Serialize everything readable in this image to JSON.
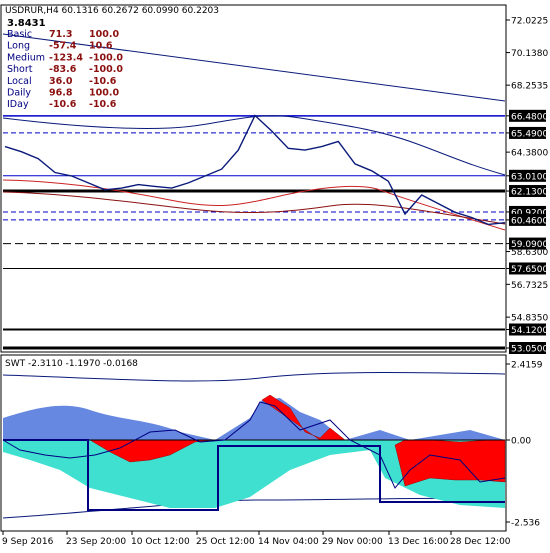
{
  "header": {
    "symbol_line": "USDRUR,H4  60.1316 60.2672 60.0990 60.2203",
    "value": "3.8431"
  },
  "table": [
    {
      "name": "Basic",
      "a": "71.3",
      "b": "100.0"
    },
    {
      "name": "Long",
      "a": "-57.4",
      "b": "10.6"
    },
    {
      "name": "Medium",
      "a": "-123.4",
      "b": "-100.0"
    },
    {
      "name": "Short",
      "a": "-83.6",
      "b": "-100.0"
    },
    {
      "name": "Local",
      "a": "36.0",
      "b": "-10.6"
    },
    {
      "name": "Daily",
      "a": "96.8",
      "b": "100.0"
    },
    {
      "name": "IDay",
      "a": "-10.6",
      "b": "-10.6"
    }
  ],
  "price_scale": {
    "ticks": [
      "72.0225",
      "70.1380",
      "68.2535",
      "66.4800",
      "65.4900",
      "64.3800",
      "63.0100",
      "62.1300",
      "60.9200",
      "60.4600",
      "59.0900",
      "58.6300",
      "57.6500",
      "56.7325",
      "54.8350",
      "54.1200",
      "53.0500"
    ],
    "boxed": [
      "66.4800",
      "65.4900",
      "63.0100",
      "62.1300",
      "60.9200",
      "60.4600",
      "59.0900",
      "57.6500",
      "54.1200",
      "53.0500"
    ]
  },
  "indicator": {
    "label": "SWT -2.3110 -1.1970 -0.0168",
    "ticks": [
      "2.4159",
      "0.00",
      "-2.536"
    ]
  },
  "time_axis": [
    "9 Sep 2016",
    "23 Sep 20:00",
    "10 Oct 12:00",
    "25 Oct 12:00",
    "14 Nov 04:00",
    "29 Nov 00:00",
    "13 Dec 16:00",
    "28 Dec 12:00"
  ],
  "colors": {
    "price_line": "#0a1a7a",
    "bull_fill": "#ff0000",
    "bear_fill": "#6688e0",
    "band_fill": "#40e0d0",
    "level_line": "#0000cc",
    "ma_red": "#cc2222"
  },
  "chart_data": {
    "type": "line",
    "title": "USDRUR,H4",
    "x_labels": [
      "9 Sep 2016",
      "23 Sep 20:00",
      "10 Oct 12:00",
      "25 Oct 12:00",
      "14 Nov 04:00",
      "29 Nov 00:00",
      "13 Dec 16:00",
      "28 Dec 12:00"
    ],
    "series": [
      {
        "name": "USDRUR",
        "values": [
          64.7,
          64.4,
          64.0,
          63.2,
          63.0,
          62.6,
          62.2,
          62.3,
          62.5,
          62.4,
          62.3,
          62.6,
          63.0,
          63.4,
          64.5,
          66.5,
          65.6,
          64.6,
          64.5,
          64.7,
          65.0,
          63.7,
          63.3,
          62.7,
          60.8,
          61.9,
          61.4,
          60.9,
          60.6,
          60.2,
          60.3
        ]
      }
    ],
    "ylim": [
      52.6,
      72.5
    ],
    "levels": [
      66.48,
      65.49,
      63.01,
      62.13,
      60.92,
      60.46,
      59.09,
      57.65,
      54.12,
      53.05
    ]
  }
}
